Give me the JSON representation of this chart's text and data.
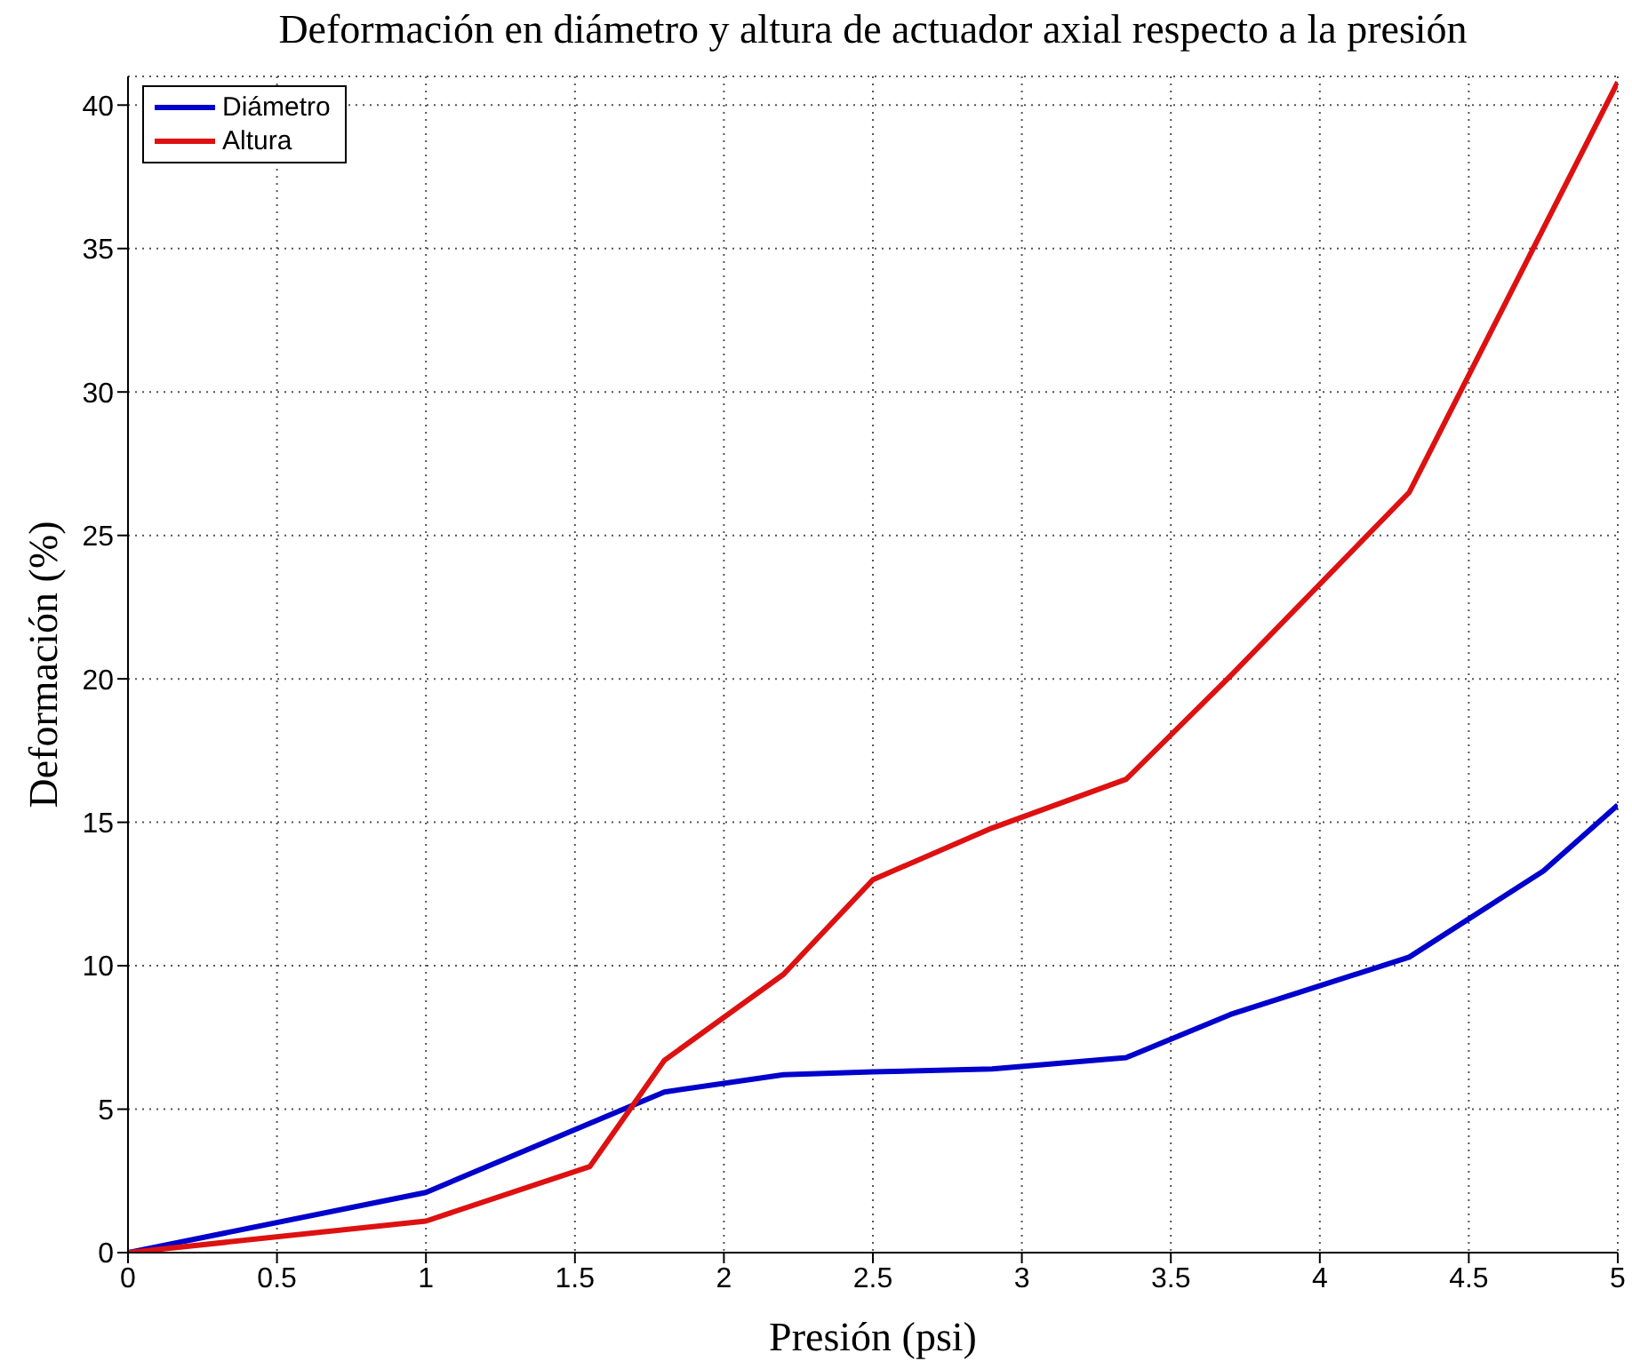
{
  "chart_data": {
    "type": "line",
    "title": "Deformación en diámetro y altura de actuador axial respecto a la presión",
    "xlabel": "Presión (psi)",
    "ylabel": "Deformación (%)",
    "series": [
      {
        "name": "Diámetro",
        "color": "#0000cc",
        "x": [
          0,
          1,
          1.8,
          2.2,
          2.5,
          2.9,
          3.35,
          3.7,
          4,
          4.3,
          4.75,
          5
        ],
        "values": [
          0,
          2.1,
          5.6,
          6.2,
          6.3,
          6.4,
          6.8,
          8.3,
          9.3,
          10.3,
          13.3,
          15.6
        ]
      },
      {
        "name": "Altura",
        "color": "#dd1111",
        "x": [
          0,
          1,
          1.55,
          1.8,
          2.2,
          2.5,
          2.9,
          3.35,
          3.7,
          4.3,
          5
        ],
        "values": [
          0,
          1.1,
          3,
          6.7,
          9.7,
          13,
          14.8,
          16.5,
          20.1,
          26.5,
          40.8
        ]
      }
    ],
    "xlim": [
      0,
      5
    ],
    "xticks": [
      0,
      0.5,
      1,
      1.5,
      2,
      2.5,
      3,
      3.5,
      4,
      4.5,
      5
    ],
    "ylim": [
      0,
      41
    ],
    "yticks": [
      0,
      5,
      10,
      15,
      20,
      25,
      30,
      35,
      40
    ],
    "grid": true,
    "legend": "top left",
    "marker": "none",
    "line_style": "solid"
  }
}
